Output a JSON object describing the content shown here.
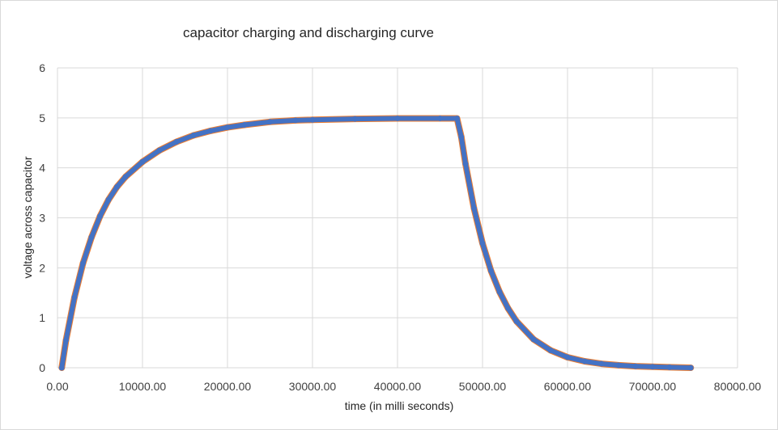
{
  "chart_data": {
    "type": "scatter",
    "title": "capacitor charging and discharging curve",
    "xlabel": "time (in milli seconds)",
    "ylabel": "voltage across capacitor",
    "xlim": [
      0,
      80000
    ],
    "ylim": [
      0,
      6
    ],
    "x_ticks": [
      "0.00",
      "10000.00",
      "20000.00",
      "30000.00",
      "40000.00",
      "50000.00",
      "60000.00",
      "70000.00",
      "80000.00"
    ],
    "y_ticks": [
      "0",
      "1",
      "2",
      "3",
      "4",
      "5",
      "6"
    ],
    "grid": true,
    "legend": "none",
    "colors": {
      "series": "#4472c4",
      "underlay": "#ed7d31",
      "grid": "#d9d9d9",
      "text": "#404040"
    },
    "series": [
      {
        "x": [
          500,
          1000,
          2000,
          3000,
          4000,
          5000,
          6000,
          7000,
          8000,
          10000,
          12000,
          14000,
          16000,
          18000,
          20000,
          22000,
          25000,
          28000,
          30000,
          35000,
          40000,
          45000,
          47000,
          47500,
          48000,
          49000,
          50000,
          51000,
          52000,
          53000,
          54000,
          56000,
          58000,
          60000,
          62000,
          64000,
          66000,
          68000,
          70000,
          72000,
          74500
        ],
        "y": [
          0.0,
          0.55,
          1.41,
          2.09,
          2.61,
          3.03,
          3.36,
          3.62,
          3.82,
          4.12,
          4.35,
          4.52,
          4.65,
          4.74,
          4.81,
          4.86,
          4.92,
          4.95,
          4.96,
          4.98,
          4.99,
          4.99,
          4.99,
          4.62,
          4.08,
          3.19,
          2.49,
          1.94,
          1.52,
          1.19,
          0.93,
          0.57,
          0.35,
          0.21,
          0.13,
          0.08,
          0.05,
          0.03,
          0.02,
          0.01,
          0.0
        ]
      }
    ]
  }
}
